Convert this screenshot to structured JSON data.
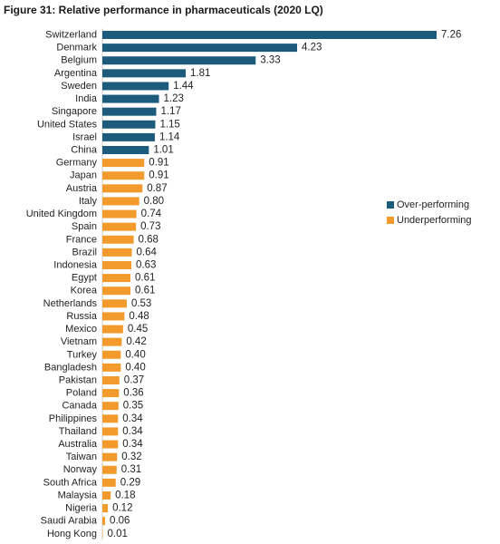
{
  "chart_data": {
    "type": "bar",
    "orientation": "horizontal",
    "title": "Figure 31: Relative performance in pharmaceuticals (2020 LQ)",
    "categories": [
      "Switzerland",
      "Denmark",
      "Belgium",
      "Argentina",
      "Sweden",
      "India",
      "Singapore",
      "United States",
      "Israel",
      "China",
      "Germany",
      "Japan",
      "Austria",
      "Italy",
      "United Kingdom",
      "Spain",
      "France",
      "Brazil",
      "Indonesia",
      "Egypt",
      "Korea",
      "Netherlands",
      "Russia",
      "Mexico",
      "Vietnam",
      "Turkey",
      "Bangladesh",
      "Pakistan",
      "Poland",
      "Canada",
      "Philippines",
      "Thailand",
      "Australia",
      "Taiwan",
      "Norway",
      "South Africa",
      "Malaysia",
      "Nigeria",
      "Saudi Arabia",
      "Hong Kong"
    ],
    "value_labels": [
      "7.26",
      "4.23",
      "3.33",
      "1.81",
      "1.44",
      "1.23",
      "1.17",
      "1.15",
      "1.14",
      "1.01",
      "0.91",
      "0.91",
      "0.87",
      "0.80",
      "0.74",
      "0.73",
      "0.68",
      "0.64",
      "0.63",
      "0.61",
      "0.61",
      "0.53",
      "0.48",
      "0.45",
      "0.42",
      "0.40",
      "0.40",
      "0.37",
      "0.36",
      "0.35",
      "0.34",
      "0.34",
      "0.34",
      "0.32",
      "0.31",
      "0.29",
      "0.18",
      "0.12",
      "0.06",
      "0.01"
    ],
    "values": [
      7.26,
      4.23,
      3.33,
      1.81,
      1.44,
      1.23,
      1.17,
      1.15,
      1.14,
      1.01,
      0.91,
      0.91,
      0.87,
      0.8,
      0.74,
      0.73,
      0.68,
      0.64,
      0.63,
      0.61,
      0.61,
      0.53,
      0.48,
      0.45,
      0.42,
      0.4,
      0.4,
      0.37,
      0.36,
      0.35,
      0.34,
      0.34,
      0.34,
      0.32,
      0.31,
      0.29,
      0.18,
      0.12,
      0.06,
      0.01
    ],
    "groups": [
      "over",
      "over",
      "over",
      "over",
      "over",
      "over",
      "over",
      "over",
      "over",
      "over",
      "under",
      "under",
      "under",
      "under",
      "under",
      "under",
      "under",
      "under",
      "under",
      "under",
      "under",
      "under",
      "under",
      "under",
      "under",
      "under",
      "under",
      "under",
      "under",
      "under",
      "under",
      "under",
      "under",
      "under",
      "under",
      "under",
      "under",
      "under",
      "under",
      "under"
    ],
    "series": [
      {
        "key": "over",
        "name": "Over-performing",
        "color": "#1c5b7c"
      },
      {
        "key": "under",
        "name": "Underperforming",
        "color": "#f39a2c"
      }
    ],
    "xlim": [
      0,
      7.26
    ],
    "grid": false,
    "legend_position": "right"
  }
}
